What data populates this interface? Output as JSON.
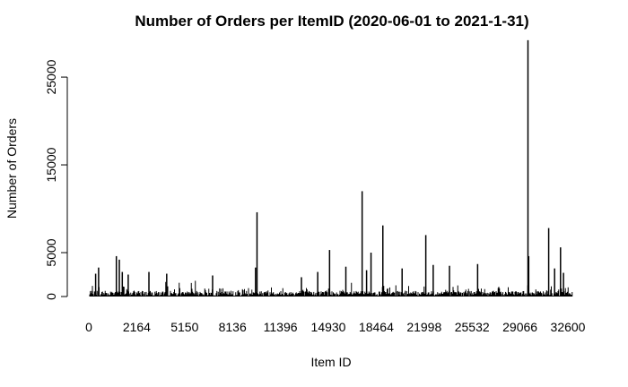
{
  "chart_data": {
    "type": "bar",
    "title": "Number of Orders per ItemID  (2020-06-01 to 2021-1-31)",
    "xlabel": "Item ID",
    "ylabel": "Number of Orders",
    "x_tick_labels": [
      "0",
      "2164",
      "5150",
      "8136",
      "11396",
      "14930",
      "18464",
      "21998",
      "25532",
      "29066",
      "32600"
    ],
    "y_ticks": [
      0,
      5000,
      15000,
      25000
    ],
    "ylim": [
      0,
      29600
    ],
    "xlim": [
      0,
      32600
    ],
    "bar_color": "#000000",
    "notable_peaks": [
      {
        "item_id": 400,
        "orders": 2600
      },
      {
        "item_id": 600,
        "orders": 3300
      },
      {
        "item_id": 1800,
        "orders": 4600
      },
      {
        "item_id": 2000,
        "orders": 4200
      },
      {
        "item_id": 2200,
        "orders": 2800
      },
      {
        "item_id": 2600,
        "orders": 2500
      },
      {
        "item_id": 4000,
        "orders": 2800
      },
      {
        "item_id": 5200,
        "orders": 2600
      },
      {
        "item_id": 8300,
        "orders": 2400
      },
      {
        "item_id": 11200,
        "orders": 3300
      },
      {
        "item_id": 11300,
        "orders": 9600
      },
      {
        "item_id": 14300,
        "orders": 2200
      },
      {
        "item_id": 15400,
        "orders": 2800
      },
      {
        "item_id": 16200,
        "orders": 5300
      },
      {
        "item_id": 17300,
        "orders": 3400
      },
      {
        "item_id": 18400,
        "orders": 12000
      },
      {
        "item_id": 18700,
        "orders": 3000
      },
      {
        "item_id": 19000,
        "orders": 5000
      },
      {
        "item_id": 19800,
        "orders": 8100
      },
      {
        "item_id": 21100,
        "orders": 3200
      },
      {
        "item_id": 22700,
        "orders": 7000
      },
      {
        "item_id": 23200,
        "orders": 3600
      },
      {
        "item_id": 24300,
        "orders": 3500
      },
      {
        "item_id": 26200,
        "orders": 3700
      },
      {
        "item_id": 29600,
        "orders": 29200
      },
      {
        "item_id": 29650,
        "orders": 4600
      },
      {
        "item_id": 31000,
        "orders": 7800
      },
      {
        "item_id": 31400,
        "orders": 3200
      },
      {
        "item_id": 31800,
        "orders": 5600
      },
      {
        "item_id": 32000,
        "orders": 2700
      }
    ]
  }
}
